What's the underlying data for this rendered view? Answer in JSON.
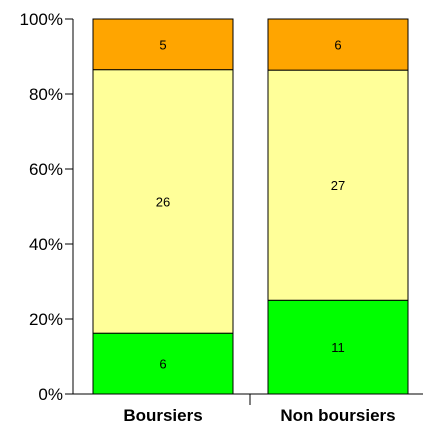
{
  "chart_data": {
    "type": "bar",
    "stacked": true,
    "normalized_percent": true,
    "categories": [
      "Boursiers",
      "Non boursiers"
    ],
    "series": [
      {
        "values": [
          6,
          11
        ],
        "color": "#00ff00"
      },
      {
        "values": [
          26,
          27
        ],
        "color": "#ffff99"
      },
      {
        "values": [
          5,
          6
        ],
        "color": "#ffa500"
      }
    ],
    "ylim": [
      0,
      100
    ],
    "yticks": [
      "0%",
      "20%",
      "40%",
      "60%",
      "80%",
      "100%"
    ],
    "grid": false,
    "legend": false
  }
}
